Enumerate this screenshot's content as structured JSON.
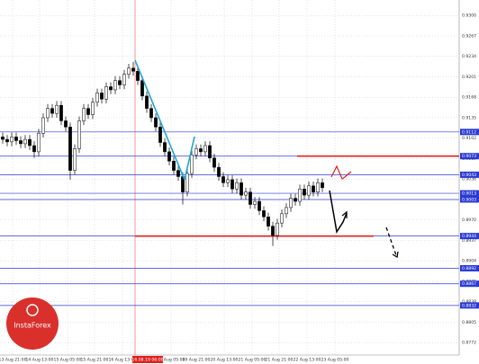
{
  "chart_data": {
    "type": "candlestick",
    "open": [
      0.9104,
      0.91,
      0.9096,
      0.9104,
      0.9098,
      0.9093,
      0.91,
      0.909,
      0.908,
      0.911,
      0.9135,
      0.915,
      0.9142,
      0.9155,
      0.913,
      0.912,
      0.905,
      0.9085,
      0.913,
      0.915,
      0.914,
      0.916,
      0.9175,
      0.9165,
      0.9185,
      0.918,
      0.9195,
      0.9188,
      0.9205,
      0.9215,
      0.921,
      0.9195,
      0.917,
      0.915,
      0.9135,
      0.912,
      0.9095,
      0.908,
      0.9065,
      0.905,
      0.904,
      0.9015,
      0.9045,
      0.9075,
      0.9085,
      0.908,
      0.909,
      0.907,
      0.9055,
      0.904,
      0.903,
      0.9035,
      0.902,
      0.903,
      0.901,
      0.9015,
      0.8995,
      0.9,
      0.8985,
      0.8975,
      0.896,
      0.8945,
      0.8965,
      0.898,
      0.899,
      0.9005,
      0.9,
      0.902,
      0.901,
      0.9025,
      0.9015,
      0.903
    ],
    "close": [
      0.91,
      0.9096,
      0.9104,
      0.9098,
      0.9093,
      0.91,
      0.909,
      0.908,
      0.911,
      0.9135,
      0.915,
      0.9142,
      0.9155,
      0.913,
      0.912,
      0.905,
      0.9085,
      0.913,
      0.915,
      0.914,
      0.916,
      0.9175,
      0.9165,
      0.9185,
      0.918,
      0.9195,
      0.9188,
      0.9205,
      0.9215,
      0.921,
      0.9195,
      0.917,
      0.915,
      0.9135,
      0.912,
      0.9095,
      0.908,
      0.9065,
      0.905,
      0.904,
      0.9015,
      0.9045,
      0.9075,
      0.9085,
      0.908,
      0.909,
      0.907,
      0.9055,
      0.904,
      0.903,
      0.9035,
      0.902,
      0.903,
      0.901,
      0.9015,
      0.8995,
      0.9,
      0.8985,
      0.8975,
      0.896,
      0.8945,
      0.8965,
      0.898,
      0.899,
      0.9005,
      0.9,
      0.902,
      0.901,
      0.9025,
      0.9015,
      0.903,
      0.9022
    ],
    "high": [
      0.9111,
      0.9107,
      0.9111,
      0.9111,
      0.9105,
      0.9107,
      0.9107,
      0.9097,
      0.9117,
      0.9142,
      0.9157,
      0.9157,
      0.9162,
      0.9162,
      0.9137,
      0.9127,
      0.9092,
      0.9137,
      0.9157,
      0.9157,
      0.9167,
      0.9182,
      0.9182,
      0.9192,
      0.9192,
      0.9202,
      0.9202,
      0.9212,
      0.9222,
      0.9225,
      0.9217,
      0.9202,
      0.9177,
      0.9157,
      0.9142,
      0.9127,
      0.9102,
      0.9087,
      0.9072,
      0.9057,
      0.9047,
      0.9052,
      0.9082,
      0.9092,
      0.9092,
      0.9097,
      0.9097,
      0.9077,
      0.9062,
      0.9047,
      0.9042,
      0.9042,
      0.9037,
      0.9037,
      0.9022,
      0.9022,
      0.9007,
      0.9007,
      0.8992,
      0.8982,
      0.8967,
      0.8972,
      0.8987,
      0.8997,
      0.9012,
      0.9012,
      0.9027,
      0.9027,
      0.9032,
      0.9032,
      0.9037,
      0.9037
    ],
    "low": [
      0.9093,
      0.9089,
      0.9089,
      0.9091,
      0.9086,
      0.9086,
      0.9083,
      0.907,
      0.9073,
      0.9103,
      0.9128,
      0.9135,
      0.9135,
      0.9123,
      0.9113,
      0.9035,
      0.9043,
      0.9078,
      0.9123,
      0.9133,
      0.9133,
      0.9153,
      0.9158,
      0.9158,
      0.9173,
      0.9173,
      0.9181,
      0.9181,
      0.9198,
      0.9203,
      0.9188,
      0.9163,
      0.9143,
      0.9128,
      0.9113,
      0.9088,
      0.9073,
      0.9058,
      0.9043,
      0.9033,
      0.8995,
      0.9008,
      0.9038,
      0.9068,
      0.9073,
      0.9073,
      0.9063,
      0.9048,
      0.9033,
      0.9023,
      0.9023,
      0.9013,
      0.9013,
      0.9003,
      0.9003,
      0.8988,
      0.8988,
      0.8978,
      0.8968,
      0.8953,
      0.8928,
      0.8938,
      0.8958,
      0.8973,
      0.8983,
      0.8993,
      0.8993,
      0.9003,
      0.9003,
      0.9008,
      0.9008,
      0.9015
    ],
    "up_color": "#ffffff",
    "down_color": "#000000",
    "ylim": [
      0.8752,
      0.9325
    ],
    "yticks": [
      {
        "value": 0.93,
        "label": "0.9300"
      },
      0.9267,
      0.9234,
      0.9201,
      0.9168,
      0.9135,
      0.9102,
      0.9069,
      0.9036,
      0.9003,
      {
        "value": 0.897,
        "label": "0.8970"
      },
      0.8937,
      0.8904,
      0.8871,
      0.8838,
      0.8805,
      0.8772
    ],
    "x_labels": [
      "13 Aug 21:00",
      "14 Aug 13:00",
      "15 Aug 05:00",
      "15 Aug 21:00",
      "16 Aug 13:00",
      "19 Aug 05:00",
      "19 Aug 21:00",
      "20 Aug 13:00",
      "21 Aug 05:00",
      "21 Aug 21:00",
      "22 Aug 13:00",
      "23 Aug 05:00"
    ],
    "crosshair_label": "16.08.19 06:00",
    "grid": true,
    "level_color": "#2b3bd1",
    "levels": [
      0.9112,
      0.9073,
      0.9043,
      0.9013,
      0.9003,
      0.8944,
      0.8892,
      0.8867,
      0.8832
    ],
    "red_color": "#e0201c",
    "red_lines": [
      0.9073,
      0.8944
    ],
    "brand": "InstaForex"
  }
}
